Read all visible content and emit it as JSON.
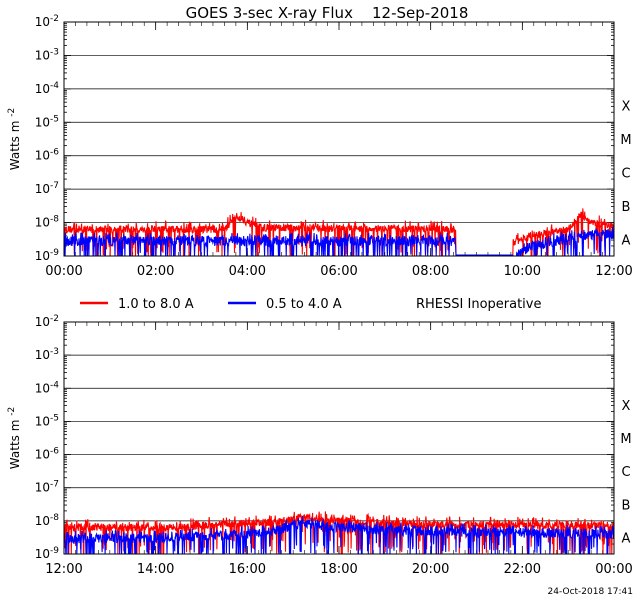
{
  "chart_data": {
    "type": "line",
    "title": "GOES 3-sec X-ray Flux    12-Sep-2018",
    "ylabel": "Watts m",
    "ylabel_exponent": "-2",
    "y_scale": "log",
    "ylim_exponents": [
      -9,
      -2
    ],
    "y_tick_labels": [
      {
        "base": "10",
        "exp": "-2"
      },
      {
        "base": "10",
        "exp": "-3"
      },
      {
        "base": "10",
        "exp": "-4"
      },
      {
        "base": "10",
        "exp": "-5"
      },
      {
        "base": "10",
        "exp": "-6"
      },
      {
        "base": "10",
        "exp": "-7"
      },
      {
        "base": "10",
        "exp": "-8"
      },
      {
        "base": "10",
        "exp": "-9"
      }
    ],
    "flare_classes": [
      {
        "label": "X",
        "exponent": -4
      },
      {
        "label": "M",
        "exponent": -5
      },
      {
        "label": "C",
        "exponent": -6
      },
      {
        "label": "B",
        "exponent": -7
      },
      {
        "label": "A",
        "exponent": -8
      }
    ],
    "legend": [
      {
        "label": "1.0 to 8.0 A",
        "color": "#ff0000"
      },
      {
        "label": "0.5 to 4.0 A",
        "color": "#0000ff"
      }
    ],
    "note": "RHESSI Inoperative",
    "timestamp": "24-Oct-2018 17:41",
    "series_colors": {
      "long": "#ff0000",
      "short": "#0000ff"
    },
    "panels": [
      {
        "name": "top",
        "x_range_hours": [
          0,
          12
        ],
        "x_tick_labels": [
          "00:00",
          "02:00",
          "04:00",
          "06:00",
          "08:00",
          "10:00",
          "12:00"
        ],
        "data_gaps_hours": [
          [
            8.55,
            9.8
          ]
        ],
        "long_baseline_log": [
          [
            0,
            -8.2
          ],
          [
            3.5,
            -8.2
          ],
          [
            3.7,
            -7.9
          ],
          [
            3.85,
            -7.85
          ],
          [
            4.0,
            -8.0
          ],
          [
            4.3,
            -8.15
          ],
          [
            8.55,
            -8.2
          ],
          [
            9.8,
            -8.6
          ],
          [
            10.2,
            -8.4
          ],
          [
            10.6,
            -8.3
          ],
          [
            11.0,
            -8.2
          ],
          [
            11.2,
            -7.9
          ],
          [
            11.3,
            -7.75
          ],
          [
            11.5,
            -8.0
          ],
          [
            12,
            -8.1
          ]
        ],
        "short_baseline_log": [
          [
            0,
            -8.55
          ],
          [
            8.55,
            -8.55
          ],
          [
            9.8,
            -9.1
          ],
          [
            10.2,
            -8.7
          ],
          [
            10.6,
            -8.6
          ],
          [
            11.2,
            -8.4
          ],
          [
            12,
            -8.35
          ]
        ]
      },
      {
        "name": "bottom",
        "x_range_hours": [
          12,
          24
        ],
        "x_tick_labels": [
          "12:00",
          "14:00",
          "16:00",
          "18:00",
          "20:00",
          "22:00",
          "00:00"
        ],
        "data_gaps_hours": [],
        "long_baseline_log": [
          [
            12,
            -8.2
          ],
          [
            14.5,
            -8.2
          ],
          [
            15.5,
            -8.1
          ],
          [
            16.5,
            -8.05
          ],
          [
            17.2,
            -7.9
          ],
          [
            18,
            -8.0
          ],
          [
            19.5,
            -8.1
          ],
          [
            24,
            -8.15
          ]
        ],
        "short_baseline_log": [
          [
            12,
            -8.55
          ],
          [
            14.5,
            -8.5
          ],
          [
            15.5,
            -8.45
          ],
          [
            16.5,
            -8.35
          ],
          [
            17.2,
            -8.05
          ],
          [
            18,
            -8.2
          ],
          [
            19.5,
            -8.3
          ],
          [
            24,
            -8.4
          ]
        ]
      }
    ]
  }
}
